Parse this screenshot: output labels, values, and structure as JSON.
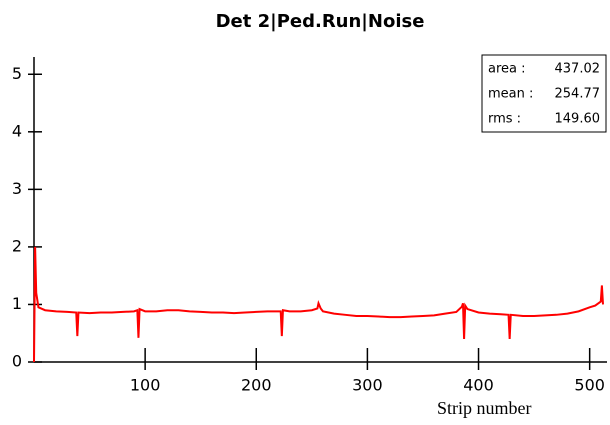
{
  "chart_data": {
    "type": "line",
    "title": "Det 2|Ped.Run|Noise",
    "x_label": "Strip number",
    "color": "#ff0000",
    "x": [
      0,
      1,
      2,
      4,
      10,
      20,
      30,
      38,
      39,
      40,
      50,
      60,
      70,
      80,
      90,
      93,
      94,
      95,
      100,
      110,
      120,
      130,
      140,
      150,
      160,
      170,
      180,
      190,
      200,
      210,
      220,
      222,
      223,
      224,
      230,
      240,
      250,
      255,
      256,
      258,
      260,
      270,
      280,
      290,
      300,
      310,
      320,
      330,
      340,
      350,
      360,
      370,
      380,
      385,
      386,
      387,
      388,
      390,
      400,
      410,
      420,
      427,
      428,
      429,
      440,
      450,
      460,
      470,
      480,
      490,
      500,
      505,
      510,
      511,
      512
    ],
    "values": [
      0,
      2.0,
      1.2,
      0.95,
      0.9,
      0.88,
      0.87,
      0.86,
      0.45,
      0.86,
      0.85,
      0.86,
      0.86,
      0.87,
      0.88,
      0.9,
      0.42,
      0.92,
      0.88,
      0.88,
      0.9,
      0.9,
      0.88,
      0.87,
      0.86,
      0.86,
      0.85,
      0.86,
      0.87,
      0.88,
      0.88,
      0.88,
      0.45,
      0.9,
      0.88,
      0.88,
      0.9,
      0.93,
      1.02,
      0.93,
      0.88,
      0.84,
      0.82,
      0.8,
      0.8,
      0.79,
      0.78,
      0.78,
      0.79,
      0.8,
      0.81,
      0.84,
      0.87,
      0.96,
      1.02,
      0.4,
      0.98,
      0.92,
      0.86,
      0.84,
      0.83,
      0.82,
      0.4,
      0.82,
      0.8,
      0.8,
      0.81,
      0.82,
      0.84,
      0.88,
      0.95,
      0.98,
      1.05,
      1.33,
      1.0
    ],
    "xlim": [
      0,
      512
    ],
    "ylim": [
      0,
      5.3
    ],
    "xticks": [
      100,
      200,
      300,
      400,
      500
    ],
    "yticks": [
      0,
      1,
      2,
      3,
      4,
      5
    ],
    "stats": [
      {
        "name": "area :",
        "value": 437.02
      },
      {
        "name": "mean :",
        "value": 254.77
      },
      {
        "name": "rms :",
        "value": 149.6,
        "label": "149.60"
      }
    ]
  }
}
